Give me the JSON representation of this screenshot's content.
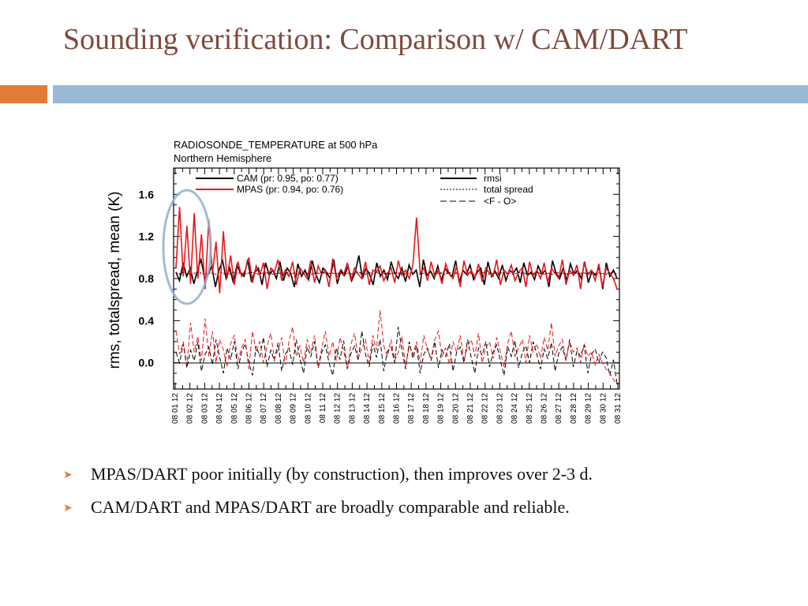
{
  "slide": {
    "title": "Sounding verification: Comparison w/ CAM/DART",
    "bullets": [
      "MPAS/DART poor initially (by construction), then improves over 2-3 d.",
      "CAM/DART and MPAS/DART are broadly comparable and reliable."
    ],
    "bullet_icon": "chevron-right-icon",
    "colors": {
      "title": "#7f4a3c",
      "accent_orange": "#e07b3a",
      "accent_blue": "#9ab9d6",
      "mpas": "#e8161b",
      "cam": "#000000",
      "highlight_circle": "#8fb0d0"
    }
  },
  "chart_data": {
    "type": "line",
    "title": "RADIOSONDE_TEMPERATURE at 500 hPa",
    "subtitle": "Northern Hemisphere",
    "ylabel": "rms, totalspread, mean (K)",
    "ylim": [
      -0.25,
      1.85
    ],
    "yticks": [
      0.0,
      0.4,
      0.8,
      1.2,
      1.6
    ],
    "ytick_labels": [
      "0.0",
      "0.4",
      "0.8",
      "1.2",
      "1.6"
    ],
    "x_labels": [
      "08 01 12",
      "08 02 12",
      "08 03 12",
      "08 04 12",
      "08 05 12",
      "08 06 12",
      "08 07 12",
      "08 08 12",
      "08 09 12",
      "08 10 12",
      "08 11 12",
      "08 12 12",
      "08 13 12",
      "08 14 12",
      "08 15 12",
      "08 16 12",
      "08 17 12",
      "08 18 12",
      "08 19 12",
      "08 20 12",
      "08 21 12",
      "08 22 12",
      "08 23 12",
      "08 24 12",
      "08 25 12",
      "08 26 12",
      "08 27 12",
      "08 28 12",
      "08 29 12",
      "08 30 12",
      "08 31 12"
    ],
    "legend_left": [
      "CAM (pr: 0.95, po: 0.77)",
      "MPAS (pr: 0.94, po: 0.76)"
    ],
    "legend_right": [
      "rmsi",
      "total spread",
      "<F - O>"
    ],
    "legend_position": "top",
    "grid": false,
    "highlight": "ellipse around first 2-3 days of MPAS series",
    "series": [
      {
        "name": "CAM rmsi",
        "color": "#000000",
        "style": "solid",
        "values": [
          0.86,
          0.78,
          0.95,
          0.82,
          0.9,
          0.75,
          0.88,
          0.98,
          0.8,
          0.84,
          0.92,
          0.72,
          0.88,
          0.97,
          0.8,
          0.9,
          0.76,
          0.93,
          0.85,
          0.82,
          0.98,
          0.78,
          0.86,
          0.9,
          0.74,
          0.95,
          0.83,
          0.88,
          0.8,
          0.96,
          0.78,
          0.9,
          0.85,
          0.72,
          0.94,
          0.82,
          0.88,
          0.79,
          0.97,
          0.84,
          0.76,
          0.9,
          0.86,
          0.8,
          0.98,
          0.75,
          0.88,
          0.83,
          0.92,
          0.78,
          0.86,
          1.02,
          0.8,
          0.9,
          0.84,
          0.74,
          0.95,
          0.82,
          0.88,
          0.79,
          0.96,
          0.85,
          0.8,
          0.9,
          0.77,
          0.93,
          0.84,
          0.88,
          0.72,
          0.98,
          0.83,
          0.87,
          0.8,
          0.92,
          0.78,
          0.9,
          0.85,
          0.82,
          0.97,
          0.76,
          0.88,
          0.84,
          0.93,
          0.79,
          0.86,
          0.9,
          0.74,
          0.96,
          0.82,
          0.87,
          0.8,
          0.93,
          0.78,
          0.88,
          0.85,
          0.9,
          0.76,
          0.95,
          0.83,
          0.86,
          0.79,
          0.92,
          0.84,
          0.88,
          0.72,
          0.97,
          0.85,
          0.8,
          0.9,
          0.78,
          0.94,
          0.84,
          0.88,
          0.8,
          0.96,
          0.76,
          0.87,
          0.83,
          0.91,
          0.7,
          0.95,
          0.82,
          0.88,
          0.8
        ]
      },
      {
        "name": "MPAS rmsi",
        "color": "#e8161b",
        "style": "solid",
        "values": [
          0.9,
          1.48,
          0.82,
          1.3,
          0.75,
          1.42,
          0.8,
          1.22,
          0.7,
          1.36,
          0.85,
          1.15,
          0.66,
          1.25,
          0.8,
          1.02,
          0.74,
          0.96,
          0.82,
          0.88,
          1.0,
          0.76,
          0.92,
          0.83,
          0.95,
          0.7,
          0.9,
          0.86,
          0.98,
          0.78,
          0.88,
          0.82,
          0.96,
          0.74,
          0.9,
          0.85,
          0.8,
          0.97,
          0.76,
          0.92,
          0.84,
          0.88,
          0.72,
          0.99,
          0.8,
          0.87,
          0.83,
          0.95,
          0.78,
          0.9,
          0.84,
          0.8,
          0.96,
          0.74,
          0.88,
          0.86,
          0.92,
          0.78,
          0.85,
          0.9,
          0.76,
          0.97,
          0.83,
          0.88,
          0.8,
          0.93,
          1.38,
          0.85,
          0.9,
          0.78,
          0.96,
          0.82,
          0.88,
          0.75,
          0.94,
          0.84,
          0.8,
          0.92,
          0.72,
          0.97,
          0.83,
          0.88,
          0.8,
          0.94,
          0.77,
          0.9,
          0.85,
          0.82,
          0.98,
          0.74,
          0.88,
          0.84,
          0.93,
          0.78,
          0.86,
          0.9,
          0.72,
          0.96,
          0.82,
          0.88,
          0.8,
          0.95,
          0.76,
          0.9,
          0.85,
          0.8,
          0.98,
          0.74,
          0.88,
          0.83,
          0.93,
          0.7,
          0.96,
          0.84,
          0.88,
          0.78,
          0.94,
          0.72,
          0.9,
          0.85,
          0.8,
          0.7
        ]
      },
      {
        "name": "CAM total spread",
        "color": "#000000",
        "style": "dotted",
        "values": [
          0.85,
          0.84,
          0.86,
          0.85,
          0.84,
          0.85,
          0.86,
          0.85,
          0.84,
          0.85,
          0.85,
          0.84,
          0.86,
          0.85,
          0.84,
          0.85,
          0.86,
          0.85,
          0.85,
          0.84,
          0.85,
          0.86,
          0.85,
          0.84,
          0.85,
          0.85,
          0.86,
          0.84,
          0.85,
          0.85,
          0.84,
          0.86,
          0.85,
          0.85,
          0.84,
          0.85,
          0.86,
          0.85,
          0.84,
          0.85,
          0.85,
          0.86,
          0.84,
          0.85,
          0.85,
          0.84,
          0.86,
          0.85,
          0.85,
          0.84,
          0.85,
          0.86,
          0.85,
          0.84,
          0.85,
          0.85,
          0.86,
          0.84,
          0.85,
          0.85,
          0.84,
          0.86,
          0.85,
          0.85,
          0.84,
          0.85,
          0.86,
          0.85,
          0.84,
          0.85,
          0.85,
          0.86,
          0.84,
          0.85,
          0.85,
          0.84,
          0.86,
          0.85,
          0.85,
          0.84,
          0.85,
          0.86,
          0.85,
          0.84,
          0.85,
          0.85,
          0.86,
          0.84,
          0.85,
          0.85,
          0.84,
          0.86,
          0.85,
          0.85,
          0.84,
          0.85,
          0.86,
          0.85,
          0.84,
          0.85,
          0.85,
          0.86,
          0.84,
          0.85,
          0.85,
          0.84,
          0.86,
          0.85,
          0.85,
          0.84,
          0.85,
          0.86,
          0.85,
          0.84,
          0.85,
          0.85,
          0.86,
          0.84,
          0.85,
          0.85,
          0.84,
          0.86,
          0.85,
          0.85
        ]
      },
      {
        "name": "MPAS total spread",
        "color": "#e8161b",
        "style": "dotted",
        "values": [
          0.86,
          0.85,
          0.84,
          0.86,
          0.85,
          0.85,
          0.84,
          0.86,
          0.85,
          0.85,
          0.86,
          0.84,
          0.85,
          0.85,
          0.86,
          0.84,
          0.85,
          0.85,
          0.86,
          0.84,
          0.85,
          0.85,
          0.86,
          0.84,
          0.85,
          0.85,
          0.86,
          0.84,
          0.85,
          0.85,
          0.86,
          0.84,
          0.85,
          0.85,
          0.86,
          0.84,
          0.85,
          0.85,
          0.86,
          0.84,
          0.85,
          0.85,
          0.86,
          0.84,
          0.85,
          0.85,
          0.86,
          0.84,
          0.85,
          0.85,
          0.86,
          0.84,
          0.85,
          0.85,
          0.86,
          0.84,
          0.85,
          0.85,
          0.86,
          0.84,
          0.85,
          0.85,
          0.86,
          0.84,
          0.85,
          0.85,
          0.86,
          0.84,
          0.85,
          0.85,
          0.86,
          0.84,
          0.85,
          0.85,
          0.86,
          0.84,
          0.85,
          0.85,
          0.86,
          0.84,
          0.85,
          0.85,
          0.86,
          0.84,
          0.85,
          0.85,
          0.86,
          0.84,
          0.85,
          0.85,
          0.86,
          0.84,
          0.85,
          0.85,
          0.86,
          0.84,
          0.85,
          0.85,
          0.86,
          0.84,
          0.85,
          0.85,
          0.86,
          0.84,
          0.85,
          0.85,
          0.86,
          0.84,
          0.85,
          0.85,
          0.86,
          0.84,
          0.85,
          0.85,
          0.86,
          0.84,
          0.85,
          0.85,
          0.86,
          0.84,
          0.85,
          0.85,
          0.86,
          0.84
        ]
      },
      {
        "name": "CAM <F - O>",
        "color": "#000000",
        "style": "dashed",
        "values": [
          0.1,
          0.0,
          0.18,
          -0.05,
          0.12,
          0.02,
          0.2,
          -0.08,
          0.08,
          0.15,
          -0.02,
          0.22,
          0.05,
          -0.1,
          0.14,
          0.03,
          0.2,
          -0.06,
          0.1,
          0.18,
          0.0,
          -0.12,
          0.16,
          0.06,
          0.24,
          -0.04,
          0.12,
          0.02,
          0.19,
          -0.08,
          0.08,
          0.14,
          -0.02,
          0.22,
          0.04,
          -0.1,
          0.15,
          0.06,
          0.2,
          -0.05,
          0.1,
          0.17,
          0.0,
          -0.12,
          0.14,
          0.03,
          0.21,
          -0.06,
          0.09,
          0.16,
          0.02,
          0.3,
          0.08,
          -0.04,
          0.18,
          0.05,
          0.22,
          -0.08,
          0.11,
          0.15,
          0.0,
          0.34,
          0.12,
          -0.06,
          0.2,
          0.04,
          0.16,
          -0.1,
          0.08,
          0.14,
          0.02,
          0.2,
          -0.05,
          0.12,
          0.06,
          0.18,
          -0.08,
          0.1,
          0.15,
          0.0,
          0.22,
          0.05,
          -0.1,
          0.14,
          0.07,
          0.2,
          -0.04,
          0.1,
          0.17,
          0.02,
          -0.12,
          0.15,
          0.06,
          0.21,
          -0.05,
          0.1,
          0.16,
          0.0,
          0.2,
          0.08,
          -0.06,
          0.13,
          0.04,
          0.19,
          -0.08,
          0.09,
          0.15,
          0.02,
          0.22,
          -0.04,
          0.11,
          0.06,
          0.17,
          -0.1,
          0.08,
          0.13,
          0.0,
          0.1,
          0.05,
          -0.12,
          0.03,
          -0.2
        ]
      },
      {
        "name": "MPAS <F - O>",
        "color": "#e8161b",
        "style": "dashed",
        "values": [
          0.3,
          0.08,
          0.2,
          -0.02,
          0.38,
          0.1,
          0.25,
          0.02,
          0.42,
          0.06,
          0.3,
          0.0,
          0.22,
          0.12,
          -0.04,
          0.18,
          0.26,
          0.02,
          0.14,
          0.22,
          -0.06,
          0.3,
          0.1,
          0.2,
          0.0,
          0.16,
          0.28,
          0.04,
          0.12,
          0.24,
          -0.02,
          0.2,
          0.34,
          0.06,
          0.16,
          0.0,
          0.22,
          0.1,
          0.26,
          -0.04,
          0.14,
          0.3,
          0.06,
          0.2,
          0.02,
          0.24,
          0.12,
          -0.06,
          0.18,
          0.28,
          0.04,
          0.14,
          0.22,
          0.0,
          0.26,
          0.12,
          0.5,
          0.16,
          0.06,
          0.22,
          0.02,
          0.1,
          0.25,
          -0.04,
          0.16,
          0.08,
          0.2,
          0.0,
          0.26,
          0.12,
          0.04,
          0.22,
          0.3,
          0.06,
          0.14,
          -0.02,
          0.2,
          0.1,
          0.26,
          0.02,
          0.16,
          0.22,
          0.06,
          0.28,
          0.0,
          0.14,
          0.2,
          0.04,
          0.24,
          0.1,
          -0.04,
          0.18,
          0.3,
          0.06,
          0.14,
          0.22,
          0.0,
          0.26,
          0.1,
          0.18,
          0.04,
          0.24,
          0.12,
          0.38,
          0.06,
          0.16,
          0.22,
          0.02,
          0.2,
          0.1,
          0.14,
          0.0,
          0.18,
          0.06,
          0.1,
          -0.02,
          0.08,
          0.0,
          -0.06,
          -0.1,
          -0.16,
          -0.2
        ]
      }
    ]
  }
}
